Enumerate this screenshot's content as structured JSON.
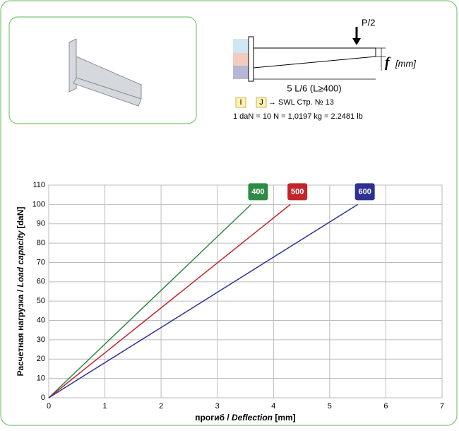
{
  "header": {
    "load_label": "P/2",
    "deflection_symbol": "f",
    "deflection_unit": "[mm]",
    "span_label": "5 L/6 (L≥400)",
    "key_i": "I",
    "key_j": "J",
    "reference": "→ SWL Стр. № 13",
    "conversion": "1 daN = 10 N = 1,0197 kg = 2.2481 lb"
  },
  "chart_data": {
    "type": "line",
    "xlabel": [
      "прогиб / ",
      "Deflection",
      " [mm]"
    ],
    "ylabel": [
      "Расчетная нагрузка / ",
      "Load capacity",
      " [daN]"
    ],
    "xlim": [
      0,
      7
    ],
    "xticks": [
      0,
      1,
      2,
      3,
      4,
      5,
      6,
      7
    ],
    "ylim": [
      0,
      110
    ],
    "yticks": [
      0,
      10,
      20,
      30,
      40,
      50,
      60,
      70,
      80,
      90,
      100,
      110
    ],
    "grid": true,
    "series": [
      {
        "name": "400",
        "color": "#2e8b46",
        "x": [
          0,
          3.6
        ],
        "values": [
          0,
          100
        ]
      },
      {
        "name": "500",
        "color": "#c0272d",
        "x": [
          0,
          4.3
        ],
        "values": [
          0,
          100
        ]
      },
      {
        "name": "600",
        "color": "#2e3192",
        "x": [
          0,
          5.5
        ],
        "values": [
          0,
          100
        ]
      }
    ]
  }
}
